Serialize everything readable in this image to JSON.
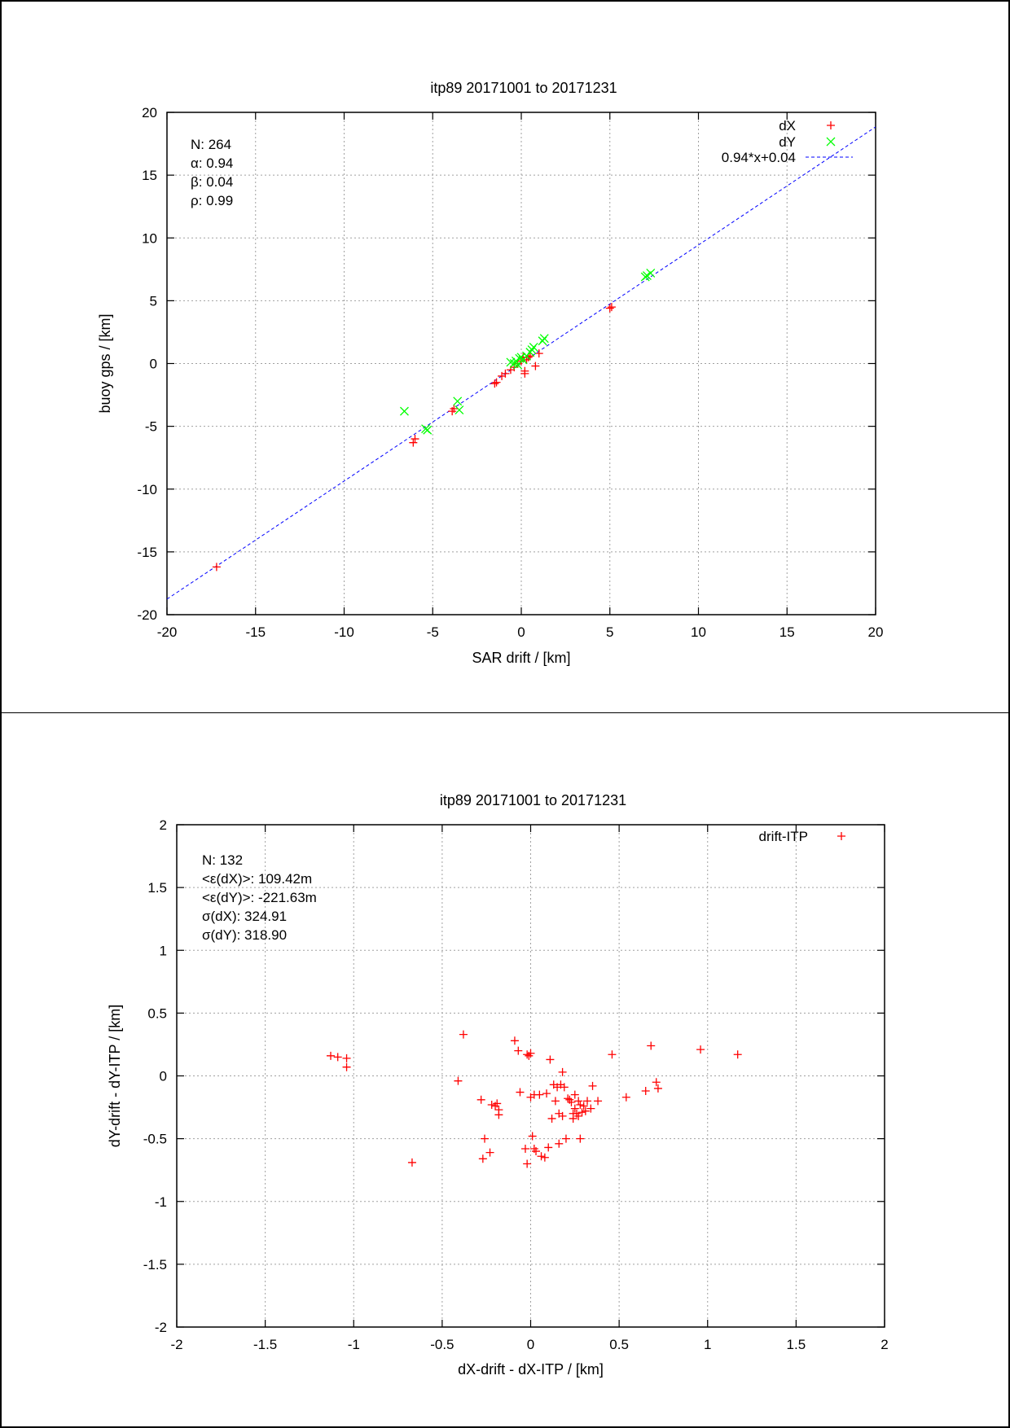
{
  "chart_data": [
    {
      "type": "scatter",
      "title": "itp89 20171001 to 20171231",
      "xlabel": "SAR drift / [km]",
      "ylabel": "buoy gps / [km]",
      "xlim": [
        -20,
        20
      ],
      "ylim": [
        -20,
        20
      ],
      "xticks": [
        -20,
        -15,
        -10,
        -5,
        0,
        5,
        10,
        15,
        20
      ],
      "yticks": [
        -20,
        -15,
        -10,
        -5,
        0,
        5,
        10,
        15,
        20
      ],
      "grid": true,
      "legend_position": "top-right",
      "stats": [
        "N: 264",
        "α: 0.94",
        "β: 0.04",
        "ρ: 0.99"
      ],
      "series": [
        {
          "name": "dX",
          "marker": "plus",
          "color": "#ff0000",
          "x": [
            -17.2,
            -6.1,
            -6.0,
            -3.9,
            -3.8,
            -1.5,
            -1.4,
            -1.1,
            -0.9,
            -0.6,
            -0.4,
            -0.2,
            0.0,
            0.1,
            0.2,
            0.2,
            0.3,
            0.4,
            0.5,
            0.8,
            1.0,
            5.0,
            5.1
          ],
          "y": [
            -16.2,
            -6.3,
            -6.0,
            -3.8,
            -3.6,
            -1.6,
            -1.5,
            -1.0,
            -0.8,
            -0.5,
            -0.3,
            0.0,
            0.2,
            0.5,
            -0.6,
            -0.8,
            0.3,
            0.5,
            0.6,
            -0.2,
            0.8,
            4.4,
            4.5
          ]
        },
        {
          "name": "dY",
          "marker": "cross",
          "color": "#00ff00",
          "x": [
            -6.6,
            -5.4,
            -5.3,
            -3.6,
            -3.5,
            -0.6,
            -0.4,
            -0.3,
            -0.2,
            -0.1,
            0.0,
            0.1,
            0.3,
            0.5,
            0.6,
            0.7,
            1.2,
            1.3,
            7.0,
            7.1,
            7.3
          ],
          "y": [
            -3.8,
            -5.2,
            -5.3,
            -3.0,
            -3.7,
            0.1,
            0.0,
            0.2,
            -0.1,
            0.4,
            0.5,
            0.3,
            0.6,
            0.9,
            1.1,
            1.3,
            1.8,
            2.0,
            6.9,
            7.0,
            7.2
          ]
        }
      ],
      "fit": {
        "label": "0.94*x+0.04",
        "slope": 0.94,
        "intercept": 0.04,
        "color": "#0000ff",
        "style": "dashed"
      }
    },
    {
      "type": "scatter",
      "title": "itp89 20171001 to 20171231",
      "xlabel": "dX-drift - dX-ITP / [km]",
      "ylabel": "dY-drift - dY-ITP / [km]",
      "xlim": [
        -2,
        2
      ],
      "ylim": [
        -2,
        2
      ],
      "xticks": [
        -2,
        -1.5,
        -1,
        -0.5,
        0,
        0.5,
        1,
        1.5,
        2
      ],
      "yticks": [
        -2,
        -1.5,
        -1,
        -0.5,
        0,
        0.5,
        1,
        1.5,
        2
      ],
      "grid": true,
      "legend_position": "top-right",
      "stats": [
        "N: 132",
        "<ε(dX)>:  109.42m",
        "<ε(dY)>: -221.63m",
        "σ(dX):  324.91",
        "σ(dY):  318.90"
      ],
      "series": [
        {
          "name": "drift-ITP",
          "marker": "plus",
          "color": "#ff0000",
          "x": [
            -1.13,
            -1.09,
            -1.04,
            -1.04,
            -0.67,
            -0.41,
            -0.38,
            -0.28,
            -0.27,
            -0.26,
            -0.23,
            -0.22,
            -0.2,
            -0.19,
            -0.18,
            -0.18,
            -0.09,
            -0.07,
            -0.06,
            -0.03,
            -0.02,
            -0.02,
            -0.01,
            0.0,
            0.0,
            0.01,
            0.02,
            0.02,
            0.03,
            0.05,
            0.06,
            0.08,
            0.09,
            0.1,
            0.11,
            0.12,
            0.13,
            0.14,
            0.15,
            0.16,
            0.16,
            0.17,
            0.18,
            0.18,
            0.19,
            0.2,
            0.21,
            0.22,
            0.23,
            0.24,
            0.24,
            0.25,
            0.25,
            0.26,
            0.27,
            0.27,
            0.28,
            0.28,
            0.29,
            0.3,
            0.31,
            0.32,
            0.34,
            0.35,
            0.38,
            0.46,
            0.54,
            0.65,
            0.68,
            0.71,
            0.72,
            0.96,
            1.17
          ],
          "y": [
            0.16,
            0.15,
            0.14,
            0.07,
            -0.69,
            -0.04,
            0.33,
            -0.19,
            -0.66,
            -0.5,
            -0.61,
            -0.23,
            -0.24,
            -0.22,
            -0.31,
            -0.27,
            0.28,
            0.2,
            -0.13,
            -0.58,
            -0.7,
            0.17,
            0.16,
            0.18,
            -0.17,
            -0.48,
            -0.15,
            -0.58,
            -0.6,
            -0.15,
            -0.64,
            -0.65,
            -0.14,
            -0.57,
            0.13,
            -0.34,
            -0.07,
            -0.2,
            -0.09,
            -0.54,
            -0.3,
            -0.07,
            0.03,
            -0.32,
            -0.09,
            -0.5,
            -0.18,
            -0.19,
            -0.21,
            -0.34,
            -0.3,
            -0.15,
            -0.26,
            -0.3,
            -0.2,
            -0.32,
            -0.23,
            -0.5,
            -0.29,
            -0.24,
            -0.28,
            -0.2,
            -0.26,
            -0.08,
            -0.2,
            0.17,
            -0.17,
            -0.12,
            0.24,
            -0.05,
            -0.1,
            0.21,
            0.17
          ]
        }
      ]
    }
  ]
}
